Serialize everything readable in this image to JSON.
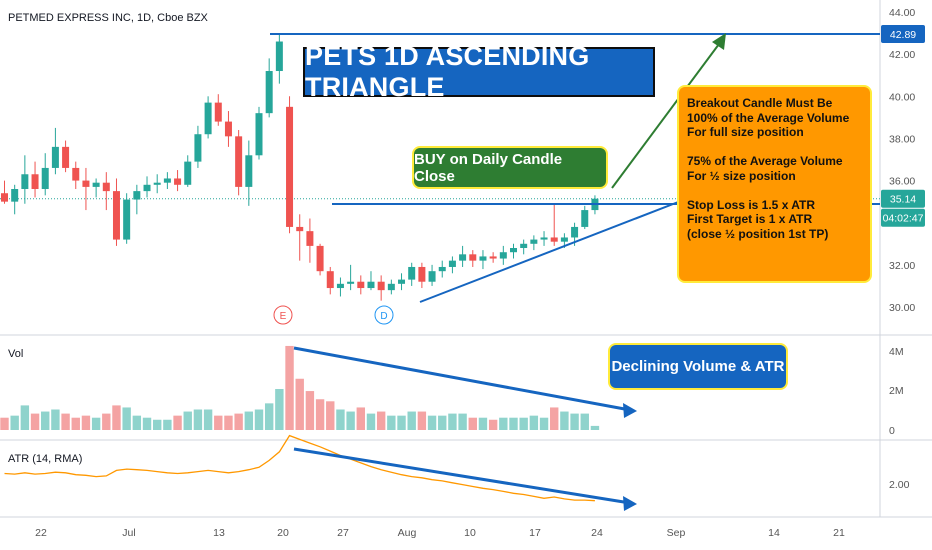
{
  "header": {
    "symbol_line": "PETMED EXPRESS INC, 1D, Cboe BZX"
  },
  "panels": {
    "volume_label": "Vol",
    "atr_label": "ATR (14, RMA)"
  },
  "annotations": {
    "title": "PETS 1D ASCENDING TRIANGLE",
    "buy": "BUY on Daily Candle Close",
    "volume_note": "Declining Volume & ATR",
    "info_lines": [
      "Breakout Candle Must Be",
      "100% of the Average Volume",
      "For full size position",
      "",
      "75% of the Average Volume",
      "For ½ size position",
      "",
      "Stop Loss is 1.5 x ATR",
      "First Target is 1 x ATR",
      "(close ½ position 1st TP)"
    ],
    "event_markers": [
      "E",
      "D"
    ]
  },
  "colors": {
    "up": "#26a69a",
    "down": "#ef5350",
    "vol_up": "#8fd3cc",
    "vol_down": "#f4a3a3",
    "atr_line": "#ff9800",
    "drawing_blue": "#1565c0",
    "drawing_green": "#2e7d32",
    "title_bg": "#1565c0",
    "info_bg": "#ff9800",
    "buy_bg": "#2e7d32"
  },
  "chart_data": {
    "type": "candlestick",
    "price_axis": {
      "ticks": [
        "30.00",
        "32.00",
        "34.00",
        "36.00",
        "38.00",
        "40.00",
        "42.00",
        "44.00"
      ],
      "range": [
        29.2,
        44.6
      ]
    },
    "price_labels": {
      "target": "42.89",
      "current": "35.14",
      "countdown": "04:02:47"
    },
    "volume_axis": {
      "ticks": [
        "0",
        "2M",
        "4M"
      ],
      "range": [
        0,
        4.2
      ]
    },
    "atr_axis": {
      "ticks": [
        "2.00"
      ],
      "range": [
        1.5,
        2.85
      ]
    },
    "x_axis_labels": [
      "22",
      "Jul",
      "13",
      "20",
      "27",
      "Aug",
      "10",
      "17",
      "24",
      "Sep",
      "14",
      "21"
    ],
    "candles": [
      {
        "o": 35.4,
        "h": 36.0,
        "l": 34.9,
        "c": 35.0,
        "v": 0.6,
        "atr": 2.17
      },
      {
        "o": 35.0,
        "h": 35.8,
        "l": 34.4,
        "c": 35.6,
        "v": 0.7,
        "atr": 2.16
      },
      {
        "o": 35.6,
        "h": 37.2,
        "l": 34.9,
        "c": 36.3,
        "v": 1.2,
        "atr": 2.18
      },
      {
        "o": 36.3,
        "h": 36.9,
        "l": 35.2,
        "c": 35.6,
        "v": 0.8,
        "atr": 2.16
      },
      {
        "o": 35.6,
        "h": 37.3,
        "l": 35.3,
        "c": 36.6,
        "v": 0.9,
        "atr": 2.17
      },
      {
        "o": 36.6,
        "h": 38.5,
        "l": 36.3,
        "c": 37.6,
        "v": 1.0,
        "atr": 2.19
      },
      {
        "o": 37.6,
        "h": 37.9,
        "l": 36.4,
        "c": 36.6,
        "v": 0.8,
        "atr": 2.18
      },
      {
        "o": 36.6,
        "h": 36.9,
        "l": 35.6,
        "c": 36.0,
        "v": 0.6,
        "atr": 2.15
      },
      {
        "o": 36.0,
        "h": 36.6,
        "l": 34.6,
        "c": 35.7,
        "v": 0.7,
        "atr": 2.14
      },
      {
        "o": 35.7,
        "h": 36.1,
        "l": 35.2,
        "c": 35.9,
        "v": 0.6,
        "atr": 2.12
      },
      {
        "o": 35.9,
        "h": 36.4,
        "l": 34.6,
        "c": 35.5,
        "v": 0.8,
        "atr": 2.13
      },
      {
        "o": 35.5,
        "h": 36.1,
        "l": 32.9,
        "c": 33.2,
        "v": 1.2,
        "atr": 2.22
      },
      {
        "o": 33.2,
        "h": 35.4,
        "l": 33.0,
        "c": 35.1,
        "v": 1.1,
        "atr": 2.24
      },
      {
        "o": 35.1,
        "h": 35.8,
        "l": 34.4,
        "c": 35.5,
        "v": 0.7,
        "atr": 2.23
      },
      {
        "o": 35.5,
        "h": 36.2,
        "l": 35.2,
        "c": 35.8,
        "v": 0.6,
        "atr": 2.22
      },
      {
        "o": 35.8,
        "h": 36.3,
        "l": 35.4,
        "c": 35.9,
        "v": 0.5,
        "atr": 2.2
      },
      {
        "o": 35.9,
        "h": 36.4,
        "l": 35.6,
        "c": 36.1,
        "v": 0.5,
        "atr": 2.18
      },
      {
        "o": 36.1,
        "h": 36.5,
        "l": 35.5,
        "c": 35.8,
        "v": 0.7,
        "atr": 2.17
      },
      {
        "o": 35.8,
        "h": 37.2,
        "l": 35.7,
        "c": 36.9,
        "v": 0.9,
        "atr": 2.18
      },
      {
        "o": 36.9,
        "h": 38.6,
        "l": 36.6,
        "c": 38.2,
        "v": 1.0,
        "atr": 2.2
      },
      {
        "o": 38.2,
        "h": 40.0,
        "l": 38.0,
        "c": 39.7,
        "v": 1.0,
        "atr": 2.22
      },
      {
        "o": 39.7,
        "h": 40.1,
        "l": 38.6,
        "c": 38.8,
        "v": 0.7,
        "atr": 2.2
      },
      {
        "o": 38.8,
        "h": 39.3,
        "l": 37.6,
        "c": 38.1,
        "v": 0.7,
        "atr": 2.18
      },
      {
        "o": 38.1,
        "h": 38.4,
        "l": 35.3,
        "c": 35.7,
        "v": 0.8,
        "atr": 2.2
      },
      {
        "o": 35.7,
        "h": 37.9,
        "l": 34.8,
        "c": 37.2,
        "v": 0.9,
        "atr": 2.23
      },
      {
        "o": 37.2,
        "h": 39.5,
        "l": 37.0,
        "c": 39.2,
        "v": 1.0,
        "atr": 2.27
      },
      {
        "o": 39.2,
        "h": 41.8,
        "l": 39.0,
        "c": 41.2,
        "v": 1.3,
        "atr": 2.38
      },
      {
        "o": 41.2,
        "h": 43.0,
        "l": 40.6,
        "c": 42.6,
        "v": 2.0,
        "atr": 2.52
      },
      {
        "o": 39.5,
        "h": 40.0,
        "l": 33.5,
        "c": 33.8,
        "v": 4.1,
        "atr": 2.78
      },
      {
        "o": 33.8,
        "h": 34.4,
        "l": 32.2,
        "c": 33.6,
        "v": 2.5,
        "atr": 2.72
      },
      {
        "o": 33.6,
        "h": 34.2,
        "l": 32.1,
        "c": 32.9,
        "v": 1.9,
        "atr": 2.66
      },
      {
        "o": 32.9,
        "h": 33.0,
        "l": 31.5,
        "c": 31.7,
        "v": 1.5,
        "atr": 2.6
      },
      {
        "o": 31.7,
        "h": 31.9,
        "l": 30.6,
        "c": 30.9,
        "v": 1.4,
        "atr": 2.53
      },
      {
        "o": 30.9,
        "h": 31.4,
        "l": 30.5,
        "c": 31.1,
        "v": 1.0,
        "atr": 2.46
      },
      {
        "o": 31.1,
        "h": 32.0,
        "l": 30.8,
        "c": 31.2,
        "v": 0.9,
        "atr": 2.4
      },
      {
        "o": 31.2,
        "h": 31.5,
        "l": 30.6,
        "c": 30.9,
        "v": 1.1,
        "atr": 2.34
      },
      {
        "o": 30.9,
        "h": 31.7,
        "l": 30.8,
        "c": 31.2,
        "v": 0.8,
        "atr": 2.28
      },
      {
        "o": 31.2,
        "h": 31.5,
        "l": 30.3,
        "c": 30.8,
        "v": 0.9,
        "atr": 2.23
      },
      {
        "o": 30.8,
        "h": 31.3,
        "l": 30.6,
        "c": 31.1,
        "v": 0.7,
        "atr": 2.19
      },
      {
        "o": 31.1,
        "h": 31.6,
        "l": 30.8,
        "c": 31.3,
        "v": 0.7,
        "atr": 2.15
      },
      {
        "o": 31.3,
        "h": 32.1,
        "l": 31.0,
        "c": 31.9,
        "v": 0.9,
        "atr": 2.12
      },
      {
        "o": 31.9,
        "h": 32.1,
        "l": 30.9,
        "c": 31.2,
        "v": 0.9,
        "atr": 2.1
      },
      {
        "o": 31.2,
        "h": 32.0,
        "l": 31.0,
        "c": 31.7,
        "v": 0.7,
        "atr": 2.07
      },
      {
        "o": 31.7,
        "h": 32.2,
        "l": 31.4,
        "c": 31.9,
        "v": 0.7,
        "atr": 2.05
      },
      {
        "o": 31.9,
        "h": 32.4,
        "l": 31.6,
        "c": 32.2,
        "v": 0.8,
        "atr": 2.02
      },
      {
        "o": 32.2,
        "h": 32.9,
        "l": 31.9,
        "c": 32.5,
        "v": 0.8,
        "atr": 1.99
      },
      {
        "o": 32.5,
        "h": 32.7,
        "l": 31.9,
        "c": 32.2,
        "v": 0.6,
        "atr": 1.96
      },
      {
        "o": 32.2,
        "h": 32.7,
        "l": 31.8,
        "c": 32.4,
        "v": 0.6,
        "atr": 1.93
      },
      {
        "o": 32.4,
        "h": 32.6,
        "l": 32.1,
        "c": 32.3,
        "v": 0.5,
        "atr": 1.91
      },
      {
        "o": 32.3,
        "h": 32.9,
        "l": 32.0,
        "c": 32.6,
        "v": 0.6,
        "atr": 1.88
      },
      {
        "o": 32.6,
        "h": 33.0,
        "l": 32.3,
        "c": 32.8,
        "v": 0.6,
        "atr": 1.85
      },
      {
        "o": 32.8,
        "h": 33.2,
        "l": 32.5,
        "c": 33.0,
        "v": 0.6,
        "atr": 1.83
      },
      {
        "o": 33.0,
        "h": 33.4,
        "l": 32.7,
        "c": 33.2,
        "v": 0.7,
        "atr": 1.8
      },
      {
        "o": 33.2,
        "h": 33.6,
        "l": 32.9,
        "c": 33.3,
        "v": 0.6,
        "atr": 1.77
      },
      {
        "o": 33.3,
        "h": 34.9,
        "l": 32.9,
        "c": 33.1,
        "v": 1.1,
        "atr": 1.79
      },
      {
        "o": 33.1,
        "h": 33.5,
        "l": 32.8,
        "c": 33.3,
        "v": 0.9,
        "atr": 1.76
      },
      {
        "o": 33.3,
        "h": 34.0,
        "l": 32.9,
        "c": 33.8,
        "v": 0.8,
        "atr": 1.74
      },
      {
        "o": 33.8,
        "h": 34.8,
        "l": 33.7,
        "c": 34.6,
        "v": 0.8,
        "atr": 1.74
      },
      {
        "o": 34.6,
        "h": 35.3,
        "l": 34.4,
        "c": 35.14,
        "v": 0.2,
        "atr": 1.73
      }
    ]
  }
}
